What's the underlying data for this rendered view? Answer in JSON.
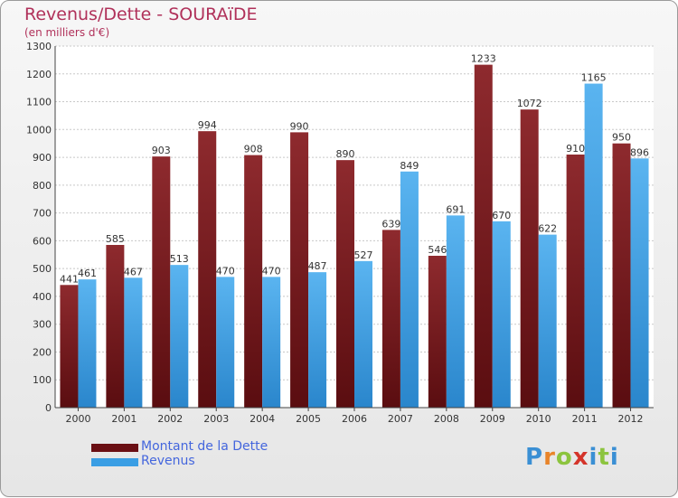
{
  "chart_data": {
    "type": "bar",
    "title": "Revenus/Dette - SOURAïDE",
    "subtitle": "(en milliers d'€)",
    "categories": [
      "2000",
      "2001",
      "2002",
      "2003",
      "2004",
      "2005",
      "2006",
      "2007",
      "2008",
      "2009",
      "2010",
      "2011",
      "2012"
    ],
    "series": [
      {
        "name": "Montant de la Dette",
        "color": "#7a1a1e",
        "values": [
          441,
          585,
          903,
          994,
          908,
          990,
          890,
          639,
          546,
          1233,
          1072,
          910,
          950
        ]
      },
      {
        "name": "Revenus",
        "color": "#3a9ee4",
        "values": [
          461,
          467,
          513,
          470,
          470,
          487,
          527,
          849,
          691,
          670,
          622,
          1165,
          896
        ]
      }
    ],
    "ylim": [
      0,
      1300
    ],
    "yticks": [
      0,
      100,
      200,
      300,
      400,
      500,
      600,
      700,
      800,
      900,
      1000,
      1100,
      1200,
      1300
    ],
    "grid": true,
    "legend": "bottom-left"
  },
  "logo": {
    "letters": [
      "P",
      "r",
      "o",
      "x",
      "i",
      "t",
      "i"
    ]
  }
}
